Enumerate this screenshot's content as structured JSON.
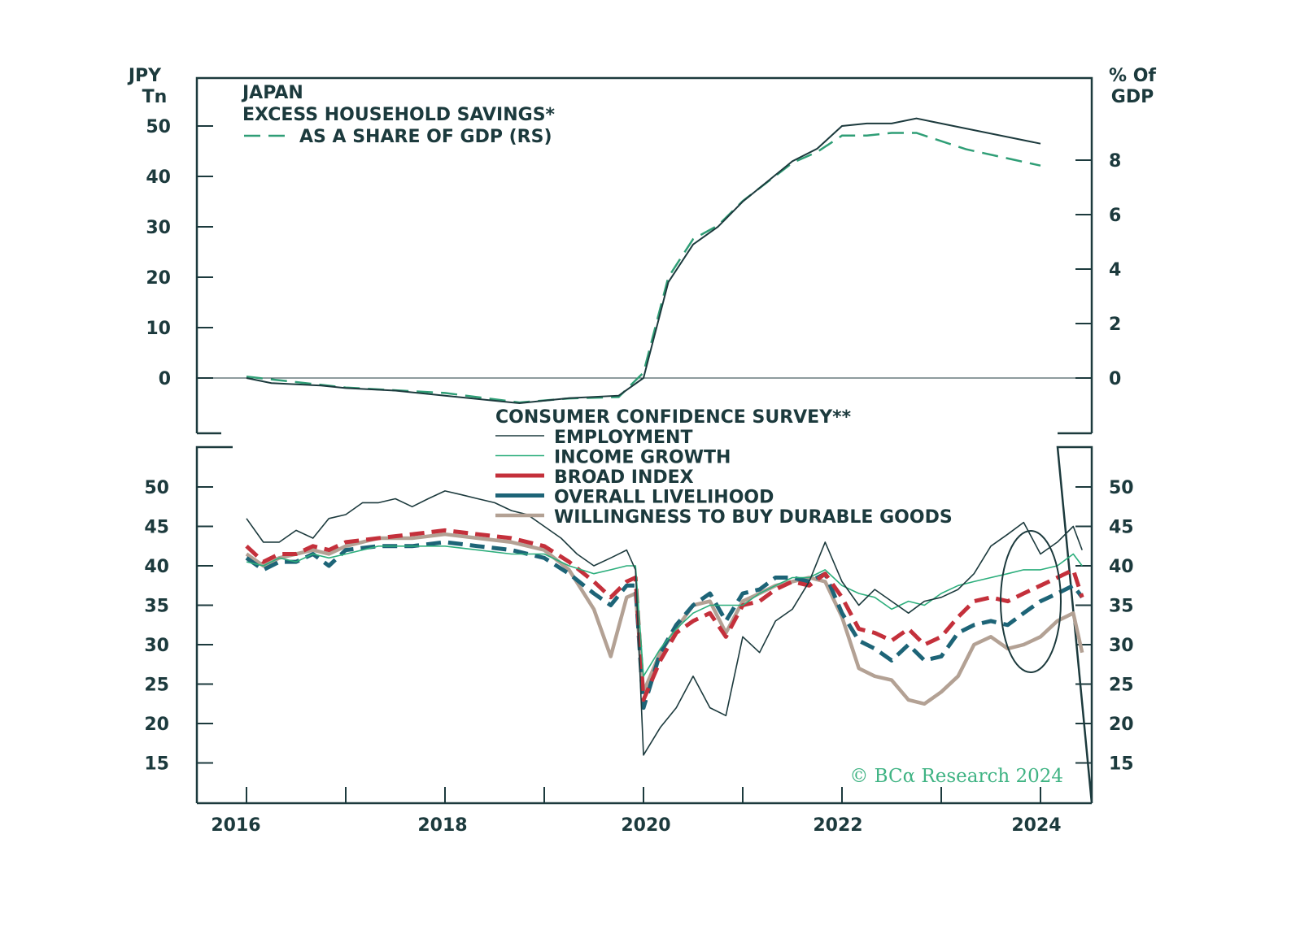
{
  "colors": {
    "axis": "#1c3a3d",
    "excess_savings": "#1c3a3d",
    "share_of_gdp": "#2f9e76",
    "employment": "#1c3a3d",
    "income_growth": "#2cae7c",
    "broad_index": "#c4303b",
    "overall_livelihood": "#1d6477",
    "durable_goods": "#b3a194",
    "credit": "#3fb383"
  },
  "chart_data": [
    {
      "type": "line",
      "panel": "top",
      "title": "JAPAN",
      "left_axis_label": [
        "JPY",
        "Tn"
      ],
      "right_axis_label": [
        "% Of",
        "GDP"
      ],
      "ylim_left": [
        -10,
        60
      ],
      "ylim_right": [
        -2,
        11
      ],
      "left_ticks": [
        "50",
        "40",
        "30",
        "20",
        "10",
        "0"
      ],
      "right_ticks": [
        "8",
        "6",
        "4",
        "2",
        "0"
      ],
      "legend": [
        "EXCESS HOUSEHOLD SAVINGS*",
        "AS A SHARE OF GDP (RS)"
      ],
      "series": [
        {
          "name": "EXCESS HOUSEHOLD SAVINGS*",
          "axis": "left",
          "style": "solid",
          "x": [
            2016.0,
            2016.25,
            2016.75,
            2017.0,
            2017.5,
            2018.0,
            2018.75,
            2019.25,
            2019.75,
            2020.0,
            2020.25,
            2020.5,
            2020.75,
            2021.0,
            2021.5,
            2021.75,
            2022.0,
            2022.25,
            2022.5,
            2022.75,
            2023.25,
            2023.75,
            2024.0
          ],
          "values": [
            0,
            -1,
            -1.5,
            -2,
            -2.5,
            -3.5,
            -5,
            -4,
            -3.5,
            0,
            19,
            26.5,
            30,
            35,
            43,
            45.5,
            50,
            50.5,
            50.5,
            51.5,
            49.5,
            47.5,
            46.5
          ]
        },
        {
          "name": "AS A SHARE OF GDP (RS)",
          "axis": "right",
          "style": "dashed",
          "x": [
            2016.0,
            2016.5,
            2017.0,
            2017.5,
            2018.0,
            2018.75,
            2019.25,
            2019.75,
            2020.0,
            2020.25,
            2020.5,
            2020.75,
            2021.0,
            2021.5,
            2021.75,
            2022.0,
            2022.25,
            2022.5,
            2022.75,
            2023.25,
            2023.75,
            2024.0
          ],
          "values": [
            0.05,
            -0.15,
            -0.35,
            -0.45,
            -0.55,
            -0.9,
            -0.75,
            -0.7,
            0.2,
            3.7,
            5.1,
            5.6,
            6.5,
            7.9,
            8.3,
            8.9,
            8.9,
            9.0,
            9.0,
            8.4,
            8.0,
            7.8
          ]
        }
      ]
    },
    {
      "type": "line",
      "panel": "bottom",
      "title": "CONSUMER CONFIDENCE SURVEY**",
      "ylim": [
        10,
        55
      ],
      "left_ticks": [
        "50",
        "45",
        "40",
        "35",
        "30",
        "25",
        "20",
        "15"
      ],
      "right_ticks": [
        "50",
        "45",
        "40",
        "35",
        "30",
        "25",
        "20",
        "15"
      ],
      "x_tick_labels": [
        "2016",
        "2018",
        "2020",
        "2022",
        "2024"
      ],
      "annotation": "circled recent decline (2024)",
      "series": [
        {
          "name": "EMPLOYMENT",
          "x": [
            2016.0,
            2016.17,
            2016.33,
            2016.5,
            2016.67,
            2016.83,
            2017.0,
            2017.17,
            2017.33,
            2017.5,
            2017.67,
            2017.83,
            2018.0,
            2018.17,
            2018.33,
            2018.5,
            2018.67,
            2018.83,
            2019.0,
            2019.17,
            2019.33,
            2019.5,
            2019.67,
            2019.83,
            2019.92,
            2020.0,
            2020.17,
            2020.33,
            2020.5,
            2020.67,
            2020.83,
            2021.0,
            2021.17,
            2021.33,
            2021.5,
            2021.67,
            2021.83,
            2022.0,
            2022.17,
            2022.33,
            2022.5,
            2022.67,
            2022.83,
            2023.0,
            2023.17,
            2023.33,
            2023.5,
            2023.67,
            2023.83,
            2024.0,
            2024.17,
            2024.33,
            2024.42
          ],
          "values": [
            46,
            43,
            43,
            44.5,
            43.5,
            46,
            46.5,
            48,
            48,
            48.5,
            47.5,
            48.5,
            49.5,
            49,
            48.5,
            48,
            47,
            46.5,
            45,
            43.5,
            41.5,
            40,
            41,
            42,
            39.5,
            16,
            19.5,
            22,
            26,
            22,
            21,
            31,
            29,
            33,
            34.5,
            38,
            43,
            38,
            35,
            37,
            35.5,
            34,
            35.5,
            36,
            37,
            39,
            42.5,
            44,
            45.5,
            41.5,
            43,
            45,
            42
          ]
        },
        {
          "name": "INCOME GROWTH",
          "x": [
            2016.0,
            2016.17,
            2016.33,
            2016.5,
            2016.67,
            2016.83,
            2017.0,
            2017.33,
            2017.67,
            2018.0,
            2018.33,
            2018.67,
            2019.0,
            2019.25,
            2019.5,
            2019.67,
            2019.83,
            2019.92,
            2020.0,
            2020.17,
            2020.33,
            2020.5,
            2020.67,
            2020.83,
            2021.0,
            2021.17,
            2021.33,
            2021.5,
            2021.67,
            2021.83,
            2022.0,
            2022.17,
            2022.33,
            2022.5,
            2022.67,
            2022.83,
            2023.0,
            2023.17,
            2023.33,
            2023.5,
            2023.67,
            2023.83,
            2024.0,
            2024.17,
            2024.33,
            2024.42
          ],
          "values": [
            40.5,
            40,
            41,
            40.5,
            41.5,
            41,
            41.5,
            42.5,
            42.5,
            42.5,
            42,
            41.5,
            41.5,
            40,
            39,
            39.5,
            40,
            40,
            26,
            29.5,
            32,
            34,
            35,
            35,
            35,
            36.5,
            37.5,
            38.5,
            38.5,
            39.5,
            37.5,
            36.5,
            36,
            34.5,
            35.5,
            35,
            36.5,
            37.5,
            38,
            38.5,
            39,
            39.5,
            39.5,
            40,
            41.5,
            40
          ]
        },
        {
          "name": "BROAD INDEX",
          "x": [
            2016.0,
            2016.17,
            2016.33,
            2016.5,
            2016.67,
            2016.83,
            2017.0,
            2017.33,
            2017.67,
            2018.0,
            2018.33,
            2018.67,
            2019.0,
            2019.25,
            2019.5,
            2019.67,
            2019.83,
            2019.92,
            2020.0,
            2020.17,
            2020.33,
            2020.5,
            2020.67,
            2020.83,
            2021.0,
            2021.17,
            2021.33,
            2021.5,
            2021.67,
            2021.83,
            2022.0,
            2022.17,
            2022.33,
            2022.5,
            2022.67,
            2022.83,
            2023.0,
            2023.17,
            2023.33,
            2023.5,
            2023.67,
            2023.83,
            2024.0,
            2024.17,
            2024.33,
            2024.42
          ],
          "values": [
            42.5,
            40.5,
            41.5,
            41.5,
            42.5,
            42,
            43,
            43.5,
            44,
            44.5,
            44,
            43.5,
            42.5,
            40.5,
            38,
            36,
            38,
            38.5,
            23,
            28,
            31.5,
            33,
            34,
            31,
            35,
            35.5,
            37,
            38,
            37.5,
            39,
            36,
            32,
            31.5,
            30.5,
            32,
            30,
            31,
            33.5,
            35.5,
            36,
            35.5,
            36.5,
            37.5,
            38.5,
            39.5,
            36
          ]
        },
        {
          "name": "OVERALL LIVELIHOOD",
          "x": [
            2016.0,
            2016.17,
            2016.33,
            2016.5,
            2016.67,
            2016.83,
            2017.0,
            2017.33,
            2017.67,
            2018.0,
            2018.33,
            2018.67,
            2019.0,
            2019.25,
            2019.5,
            2019.67,
            2019.83,
            2019.92,
            2020.0,
            2020.17,
            2020.33,
            2020.5,
            2020.67,
            2020.83,
            2021.0,
            2021.17,
            2021.33,
            2021.5,
            2021.67,
            2021.83,
            2022.0,
            2022.17,
            2022.33,
            2022.5,
            2022.67,
            2022.83,
            2023.0,
            2023.17,
            2023.33,
            2023.5,
            2023.67,
            2023.83,
            2024.0,
            2024.17,
            2024.33,
            2024.42
          ],
          "values": [
            41,
            39.5,
            40.5,
            40.5,
            41.5,
            40,
            42,
            42.5,
            42.5,
            43,
            42.5,
            42,
            41,
            39,
            36.5,
            35,
            37.5,
            37.5,
            22,
            29,
            32.5,
            35,
            36.5,
            33,
            36.5,
            37,
            38.5,
            38.5,
            38,
            39,
            34,
            30.5,
            29.5,
            28,
            30,
            28,
            28.5,
            31.5,
            32.5,
            33,
            32.5,
            34,
            35.5,
            36.5,
            37.5,
            36
          ]
        },
        {
          "name": "WILLINGNESS TO BUY DURABLE GOODS",
          "x": [
            2016.0,
            2016.17,
            2016.33,
            2016.5,
            2016.67,
            2016.83,
            2017.0,
            2017.33,
            2017.67,
            2018.0,
            2018.33,
            2018.67,
            2019.0,
            2019.25,
            2019.5,
            2019.67,
            2019.83,
            2019.92,
            2020.0,
            2020.17,
            2020.33,
            2020.5,
            2020.67,
            2020.83,
            2021.0,
            2021.17,
            2021.33,
            2021.5,
            2021.67,
            2021.83,
            2022.0,
            2022.17,
            2022.33,
            2022.5,
            2022.67,
            2022.83,
            2023.0,
            2023.17,
            2023.33,
            2023.5,
            2023.67,
            2023.83,
            2024.0,
            2024.17,
            2024.33,
            2024.42
          ],
          "values": [
            41.5,
            40,
            41,
            41.5,
            42,
            41.5,
            42.5,
            43.5,
            43.5,
            44,
            43.5,
            43,
            42,
            39.5,
            34.5,
            28.5,
            36,
            36.5,
            24,
            29,
            32,
            35,
            35.5,
            31.5,
            35.5,
            36.5,
            37.5,
            38,
            38.5,
            38,
            33.5,
            27,
            26,
            25.5,
            23,
            22.5,
            24,
            26,
            30,
            31,
            29.5,
            30,
            31,
            33,
            34,
            29
          ]
        }
      ]
    }
  ],
  "credit": "© BCα Research 2024"
}
